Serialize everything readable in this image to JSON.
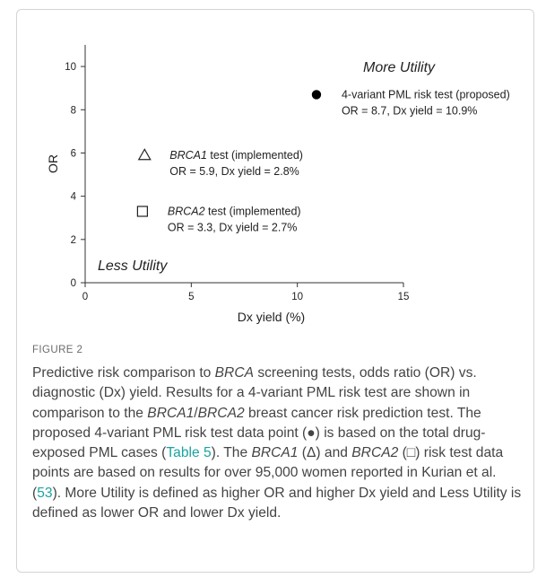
{
  "chart_data": {
    "type": "scatter",
    "xlabel": "Dx yield (%)",
    "ylabel": "OR",
    "xlim": [
      0,
      15
    ],
    "ylim": [
      0,
      11
    ],
    "x_ticks": [
      0,
      5,
      10,
      15
    ],
    "y_ticks": [
      0,
      2,
      4,
      6,
      8,
      10
    ],
    "grid": false,
    "points": [
      {
        "x": 10.9,
        "y": 8.7,
        "marker": "filled-circle",
        "label_name": "4-variant PML risk test (proposed)",
        "label_name_em": "",
        "label_stats": "OR = 8.7, Dx yield = 10.9%"
      },
      {
        "x": 2.8,
        "y": 5.9,
        "marker": "open-triangle",
        "label_name_em": "BRCA1",
        "label_name": " test (implemented)",
        "label_stats": "OR = 5.9, Dx yield = 2.8%"
      },
      {
        "x": 2.7,
        "y": 3.3,
        "marker": "open-square",
        "label_name_em": "BRCA2",
        "label_name": " test (implemented)",
        "label_stats": "OR = 3.3, Dx yield = 2.7%"
      }
    ],
    "annotations": {
      "more_utility": "More Utility",
      "less_utility": "Less Utility"
    }
  },
  "figure": {
    "label": "FIGURE 2",
    "caption": [
      {
        "t": "Predictive risk comparison to "
      },
      {
        "t": "BRCA",
        "i": true
      },
      {
        "t": " screening tests, odds ratio (OR) vs. diagnostic (Dx) yield. Results for a 4-variant PML risk test are shown in comparison to the "
      },
      {
        "t": "BRCA1",
        "i": true
      },
      {
        "t": "/"
      },
      {
        "t": "BRCA2",
        "i": true
      },
      {
        "t": " breast cancer risk prediction test. The proposed 4-variant PML risk test data point (●) is based on the total drug-exposed PML cases ("
      },
      {
        "t": "Table 5",
        "link": true
      },
      {
        "t": "). The "
      },
      {
        "t": "BRCA1",
        "i": true
      },
      {
        "t": " (Δ) and "
      },
      {
        "t": "BRCA2",
        "i": true
      },
      {
        "t": " (□) risk test data points are based on results for over 95,000 women reported in Kurian et al. ("
      },
      {
        "t": "53",
        "link": true
      },
      {
        "t": "). More Utility is defined as higher OR and higher Dx yield and Less Utility is defined as lower OR and lower Dx yield."
      }
    ]
  },
  "colors": {
    "axis": "#333333",
    "text": "#222222",
    "caption": "#444444",
    "link": "#1aa3a0",
    "caption_label": "#6b6b6b"
  }
}
